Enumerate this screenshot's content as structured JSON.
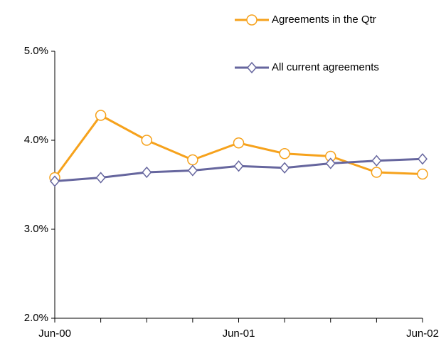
{
  "chart_data": {
    "type": "line",
    "categories": [
      "Jun-00",
      null,
      null,
      null,
      "Jun-01",
      null,
      null,
      null,
      "Jun-02"
    ],
    "series": [
      {
        "name": "Agreements in the Qtr",
        "color": "#f6a21c",
        "marker": "circle",
        "values": [
          3.58,
          4.28,
          4.0,
          3.78,
          3.97,
          3.85,
          3.82,
          3.64,
          3.62
        ]
      },
      {
        "name": "All current agreements",
        "color": "#66669e",
        "marker": "diamond",
        "values": [
          3.54,
          3.58,
          3.64,
          3.66,
          3.71,
          3.69,
          3.74,
          3.77,
          3.79
        ]
      }
    ],
    "ylim": [
      2,
      5
    ],
    "yticks": [
      {
        "value": 2,
        "label": "2.0%"
      },
      {
        "value": 3,
        "label": "3.0%"
      },
      {
        "value": 4,
        "label": "4.0%"
      },
      {
        "value": 5,
        "label": "5.0%"
      }
    ],
    "grid": false,
    "legend": "top-right"
  }
}
